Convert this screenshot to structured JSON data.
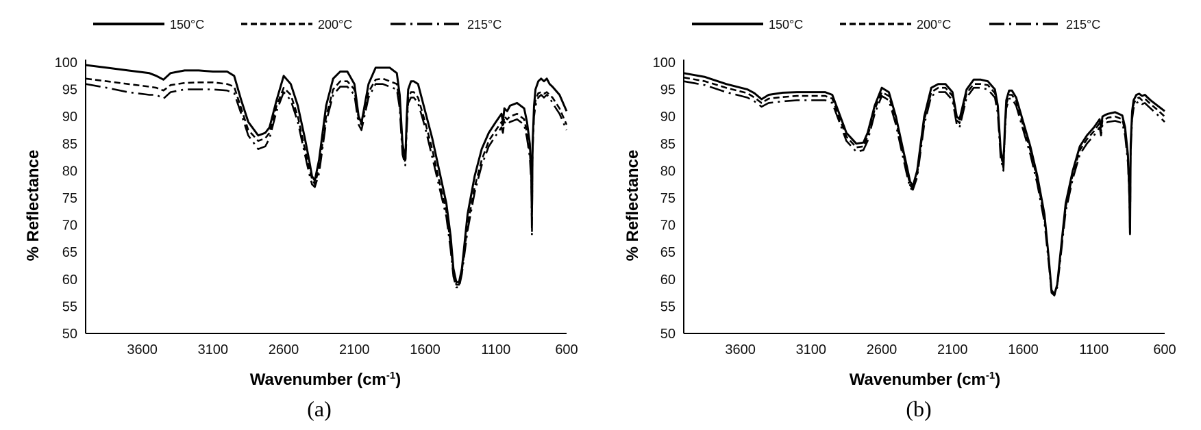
{
  "legend": {
    "items": [
      {
        "label": "150°C",
        "style": "solid"
      },
      {
        "label": "200°C",
        "style": "dashed"
      },
      {
        "label": "215°C",
        "style": "dashdot"
      }
    ]
  },
  "colors": {
    "line": "#000000",
    "axis": "#000000"
  },
  "chart_data": [
    {
      "type": "line",
      "panel_label": "(a)",
      "xlabel": "Wavenumber (cm",
      "xlabel_sup": "-1",
      "xlabel_end": ")",
      "ylabel": "% Reflectance",
      "xlim": [
        4000,
        600
      ],
      "ylim": [
        50,
        100
      ],
      "x_reversed": true,
      "x_ticks": [
        3600,
        3100,
        2600,
        2100,
        1600,
        1100,
        600
      ],
      "y_ticks": [
        50,
        55,
        60,
        65,
        70,
        75,
        80,
        85,
        90,
        95,
        100
      ],
      "legend_position": "top",
      "grid": false,
      "series": [
        {
          "name": "150°C",
          "style": "solid",
          "x": [
            4000,
            3850,
            3700,
            3550,
            3500,
            3450,
            3400,
            3300,
            3200,
            3100,
            3000,
            2950,
            2900,
            2850,
            2780,
            2730,
            2700,
            2650,
            2600,
            2550,
            2500,
            2450,
            2420,
            2400,
            2380,
            2350,
            2300,
            2250,
            2200,
            2150,
            2100,
            2070,
            2050,
            2000,
            1950,
            1900,
            1850,
            1800,
            1780,
            1760,
            1740,
            1730,
            1720,
            1700,
            1680,
            1650,
            1600,
            1550,
            1500,
            1450,
            1420,
            1400,
            1380,
            1360,
            1340,
            1300,
            1250,
            1200,
            1150,
            1100,
            1060,
            1050,
            1040,
            1020,
            1000,
            950,
            900,
            880,
            860,
            850,
            845,
            840,
            830,
            820,
            800,
            780,
            760,
            740,
            720,
            700,
            650,
            600
          ],
          "y": [
            99.5,
            99,
            98.5,
            98,
            97.5,
            96.8,
            98,
            98.5,
            98.5,
            98.3,
            98.3,
            97.5,
            93,
            89,
            86.5,
            87,
            88,
            93,
            97.5,
            96,
            92,
            86,
            82,
            79,
            78.2,
            82,
            92,
            97,
            98.3,
            98.3,
            96,
            90,
            88.8,
            96,
            99,
            99,
            99,
            98,
            94,
            85,
            82,
            90,
            95,
            96.5,
            96.5,
            96,
            91,
            86,
            80,
            74,
            68,
            62,
            59.5,
            59.5,
            62,
            72,
            79,
            84,
            87,
            89,
            90.5,
            89,
            91.5,
            91,
            92,
            92.5,
            91.5,
            89,
            85,
            80,
            72,
            85,
            92,
            95,
            96.5,
            97,
            96.5,
            97,
            96,
            95.5,
            94,
            91
          ]
        },
        {
          "name": "200°C",
          "style": "dashed",
          "x": [
            4000,
            3850,
            3700,
            3550,
            3500,
            3450,
            3400,
            3300,
            3200,
            3100,
            3000,
            2950,
            2900,
            2850,
            2780,
            2730,
            2700,
            2650,
            2600,
            2550,
            2500,
            2450,
            2420,
            2400,
            2380,
            2350,
            2300,
            2250,
            2200,
            2150,
            2100,
            2070,
            2050,
            2000,
            1950,
            1900,
            1850,
            1800,
            1780,
            1760,
            1740,
            1730,
            1720,
            1700,
            1680,
            1650,
            1600,
            1550,
            1500,
            1450,
            1420,
            1400,
            1380,
            1360,
            1340,
            1300,
            1250,
            1200,
            1150,
            1100,
            1060,
            1050,
            1040,
            1020,
            1000,
            950,
            900,
            880,
            860,
            850,
            845,
            840,
            830,
            820,
            800,
            780,
            760,
            740,
            720,
            700,
            650,
            600
          ],
          "y": [
            97,
            96.5,
            96,
            95.5,
            95.3,
            94.8,
            95.8,
            96.2,
            96.3,
            96.3,
            96,
            95.5,
            91.5,
            87.5,
            85.5,
            86,
            87,
            92,
            95.3,
            94,
            90,
            84,
            80.5,
            78.5,
            77.5,
            80.5,
            90,
            95,
            96.5,
            96.5,
            95,
            89.5,
            88.5,
            94.5,
            96.8,
            97,
            96.5,
            96,
            92.5,
            84,
            81.5,
            88.5,
            93.5,
            94.5,
            94.5,
            93.5,
            89,
            84,
            78,
            72.5,
            66.5,
            61,
            59,
            59,
            61.5,
            70,
            77,
            82,
            85.5,
            87.5,
            89,
            88,
            90,
            89.5,
            90,
            90.5,
            89.5,
            87,
            83.5,
            79,
            70,
            84,
            90.5,
            93,
            94.3,
            94.5,
            94.2,
            94.5,
            94,
            93.5,
            91.5,
            88.5
          ]
        },
        {
          "name": "215°C",
          "style": "dashdot",
          "x": [
            4000,
            3850,
            3700,
            3550,
            3500,
            3450,
            3400,
            3300,
            3200,
            3100,
            3000,
            2950,
            2900,
            2850,
            2780,
            2730,
            2700,
            2650,
            2600,
            2550,
            2500,
            2450,
            2420,
            2400,
            2380,
            2350,
            2300,
            2250,
            2200,
            2150,
            2100,
            2070,
            2050,
            2000,
            1950,
            1900,
            1850,
            1800,
            1780,
            1760,
            1740,
            1730,
            1720,
            1700,
            1680,
            1650,
            1600,
            1550,
            1500,
            1450,
            1420,
            1400,
            1380,
            1360,
            1340,
            1300,
            1250,
            1200,
            1150,
            1100,
            1060,
            1050,
            1040,
            1020,
            1000,
            950,
            900,
            880,
            860,
            850,
            845,
            840,
            830,
            820,
            800,
            780,
            760,
            740,
            720,
            700,
            650,
            600
          ],
          "y": [
            96,
            95.3,
            94.5,
            94,
            94,
            93.3,
            94.5,
            95,
            95,
            95,
            94.8,
            94.3,
            90.5,
            86.5,
            84,
            84.5,
            86,
            91,
            94.5,
            93,
            89,
            83,
            79.5,
            77.5,
            77,
            79.5,
            89,
            94,
            95.5,
            95.5,
            94,
            88.5,
            87.5,
            93.5,
            96,
            96,
            95.5,
            95,
            91.5,
            83,
            81,
            87.5,
            92.5,
            93.5,
            93.5,
            92.5,
            88,
            82.5,
            77,
            71.5,
            65.5,
            60.5,
            58.5,
            58.5,
            61,
            69,
            76,
            81,
            84.5,
            86.5,
            88,
            87,
            89,
            88.5,
            89,
            89.5,
            88.5,
            86,
            82.5,
            78,
            68,
            83.5,
            90,
            92,
            93.5,
            94,
            93.5,
            94,
            93.5,
            92.5,
            90.5,
            87.5
          ]
        }
      ]
    },
    {
      "type": "line",
      "panel_label": "(b)",
      "xlabel": "Wavenumber (cm",
      "xlabel_sup": "-1",
      "xlabel_end": ")",
      "ylabel": "% Reflectance",
      "xlim": [
        4000,
        600
      ],
      "ylim": [
        50,
        100
      ],
      "x_reversed": true,
      "x_ticks": [
        3600,
        3100,
        2600,
        2100,
        1600,
        1100,
        600
      ],
      "y_ticks": [
        50,
        55,
        60,
        65,
        70,
        75,
        80,
        85,
        90,
        95,
        100
      ],
      "legend_position": "top",
      "grid": false,
      "series": [
        {
          "name": "150°C",
          "style": "solid",
          "x": [
            4000,
            3850,
            3700,
            3550,
            3500,
            3450,
            3400,
            3300,
            3200,
            3100,
            3000,
            2950,
            2900,
            2850,
            2780,
            2730,
            2700,
            2650,
            2600,
            2550,
            2500,
            2450,
            2420,
            2400,
            2380,
            2350,
            2300,
            2250,
            2200,
            2150,
            2100,
            2070,
            2050,
            2000,
            1950,
            1900,
            1850,
            1800,
            1780,
            1760,
            1740,
            1730,
            1720,
            1700,
            1680,
            1650,
            1600,
            1550,
            1500,
            1450,
            1420,
            1400,
            1380,
            1360,
            1340,
            1300,
            1250,
            1200,
            1150,
            1100,
            1060,
            1050,
            1040,
            1020,
            1000,
            950,
            900,
            880,
            860,
            850,
            845,
            840,
            830,
            820,
            800,
            780,
            760,
            740,
            720,
            700,
            650,
            600
          ],
          "y": [
            98,
            97.3,
            96,
            95,
            94.3,
            93.2,
            94,
            94.4,
            94.5,
            94.5,
            94.5,
            94,
            90.5,
            87,
            85,
            85.2,
            87,
            92,
            95.3,
            94.5,
            90,
            84,
            80.5,
            78,
            77.2,
            80,
            90,
            95.3,
            96,
            96,
            94.5,
            90,
            89.5,
            95,
            96.8,
            96.8,
            96.5,
            95,
            92,
            84,
            81,
            88,
            93,
            94.8,
            94.8,
            93.5,
            89,
            84.5,
            79,
            72,
            64,
            58,
            57.2,
            59,
            64,
            74,
            80,
            84.5,
            86.5,
            88,
            89.5,
            88,
            90,
            90.3,
            90.5,
            90.8,
            90.2,
            88,
            83,
            76,
            68.5,
            85,
            91,
            93,
            94,
            94.2,
            93.8,
            94,
            93.5,
            93,
            92,
            91
          ]
        },
        {
          "name": "200°C",
          "style": "dashed",
          "x": [
            4000,
            3850,
            3700,
            3550,
            3500,
            3450,
            3400,
            3300,
            3200,
            3100,
            3000,
            2950,
            2900,
            2850,
            2780,
            2730,
            2700,
            2650,
            2600,
            2550,
            2500,
            2450,
            2420,
            2400,
            2380,
            2350,
            2300,
            2250,
            2200,
            2150,
            2100,
            2070,
            2050,
            2000,
            1950,
            1900,
            1850,
            1800,
            1780,
            1760,
            1740,
            1730,
            1720,
            1700,
            1680,
            1650,
            1600,
            1550,
            1500,
            1450,
            1420,
            1400,
            1380,
            1360,
            1340,
            1300,
            1250,
            1200,
            1150,
            1100,
            1060,
            1050,
            1040,
            1020,
            1000,
            950,
            900,
            880,
            860,
            850,
            845,
            840,
            830,
            820,
            800,
            780,
            760,
            740,
            720,
            700,
            650,
            600
          ],
          "y": [
            97.2,
            96.5,
            95.3,
            94.3,
            93.5,
            92.5,
            93.3,
            93.6,
            93.8,
            93.8,
            93.8,
            93.3,
            89.8,
            86.3,
            84.3,
            84.5,
            86.3,
            91.3,
            94.5,
            93.8,
            89.3,
            83.3,
            79.8,
            77.3,
            76.8,
            79.3,
            89.3,
            94.5,
            95.3,
            95.3,
            93.8,
            89.3,
            88.8,
            94.3,
            96,
            96,
            95.8,
            94.3,
            91.3,
            83.3,
            80.5,
            87.3,
            92.3,
            94,
            94,
            92.8,
            88.3,
            83.8,
            78.3,
            71.3,
            63.5,
            57.8,
            57.2,
            58.8,
            63.5,
            73.3,
            79.3,
            83.8,
            85.8,
            87.3,
            88.8,
            87.3,
            89.3,
            89.5,
            89.8,
            90,
            89.5,
            87.3,
            82.3,
            75.5,
            68.5,
            84.3,
            90.3,
            92.3,
            93.3,
            93.5,
            93,
            93.3,
            92.8,
            92.3,
            91.2,
            90
          ]
        },
        {
          "name": "215°C",
          "style": "dashdot",
          "x": [
            4000,
            3850,
            3700,
            3550,
            3500,
            3450,
            3400,
            3300,
            3200,
            3100,
            3000,
            2950,
            2900,
            2850,
            2780,
            2730,
            2700,
            2650,
            2600,
            2550,
            2500,
            2450,
            2420,
            2400,
            2380,
            2350,
            2300,
            2250,
            2200,
            2150,
            2100,
            2070,
            2050,
            2000,
            1950,
            1900,
            1850,
            1800,
            1780,
            1760,
            1740,
            1730,
            1720,
            1700,
            1680,
            1650,
            1600,
            1550,
            1500,
            1450,
            1420,
            1400,
            1380,
            1360,
            1340,
            1300,
            1250,
            1200,
            1150,
            1100,
            1060,
            1050,
            1040,
            1020,
            1000,
            950,
            900,
            880,
            860,
            850,
            845,
            840,
            830,
            820,
            800,
            780,
            760,
            740,
            720,
            700,
            650,
            600
          ],
          "y": [
            96.5,
            95.8,
            94.5,
            93.5,
            92.8,
            91.8,
            92.5,
            92.8,
            93,
            93,
            93,
            92.5,
            89,
            85.5,
            83.5,
            83.8,
            85.5,
            90.5,
            93.8,
            93,
            88.5,
            82.5,
            79,
            76.8,
            76.5,
            78.8,
            88.5,
            93.8,
            94.5,
            94.5,
            93,
            88.5,
            88,
            93.5,
            95.3,
            95.3,
            95,
            93.5,
            90.5,
            82.5,
            80,
            86.5,
            91.5,
            93.3,
            93.3,
            92,
            87.5,
            83,
            77.5,
            70.5,
            63,
            57.5,
            57,
            58.5,
            63,
            72.5,
            78.5,
            83,
            85,
            86.5,
            88,
            86.5,
            88.5,
            88.8,
            89,
            89.2,
            88.8,
            86.5,
            81.5,
            75,
            68.3,
            83.5,
            89.5,
            91.5,
            92.5,
            92.8,
            92.3,
            92.5,
            92,
            91.5,
            90.3,
            89
          ]
        }
      ]
    }
  ]
}
